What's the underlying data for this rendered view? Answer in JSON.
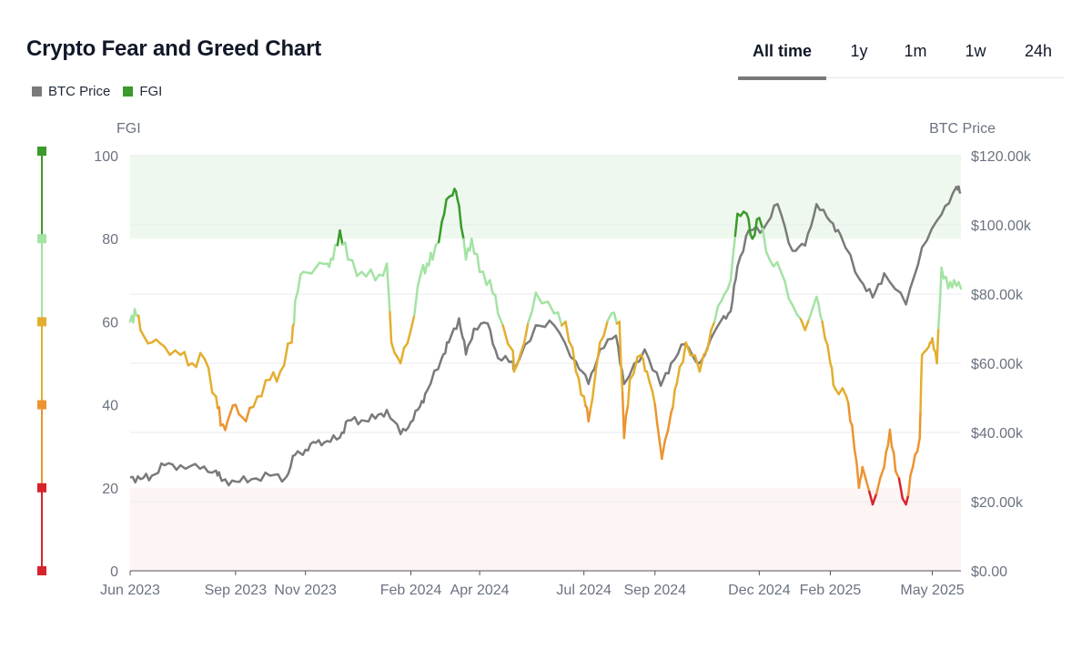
{
  "header": {
    "title": "Crypto Fear and Greed Chart"
  },
  "tabs": [
    {
      "label": "All time",
      "active": true
    },
    {
      "label": "1y",
      "active": false
    },
    {
      "label": "1m",
      "active": false
    },
    {
      "label": "1w",
      "active": false
    },
    {
      "label": "24h",
      "active": false
    }
  ],
  "legend": [
    {
      "label": "BTC Price",
      "color": "#7a7a7a"
    },
    {
      "label": "FGI",
      "color": "#3a9a2a"
    }
  ],
  "colors": {
    "extreme_greed": "#3a9a2a",
    "greed": "#a3e3a3",
    "neutral": "#e3ae2e",
    "fear": "#ec9430",
    "extreme_fear": "#d6242b",
    "btc": "#7a7a7a",
    "greed_zone": "#eef8ee",
    "fear_zone": "#fdf4f4"
  },
  "chart_data": {
    "type": "line",
    "y_left_label": "FGI",
    "y_right_label": "BTC Price",
    "y_left_range": [
      0,
      100
    ],
    "y_left_ticks": [
      "0",
      "20",
      "40",
      "60",
      "80",
      "100"
    ],
    "y_right_range": [
      0,
      120000
    ],
    "y_right_ticks": [
      "$0.00",
      "$20.00k",
      "$40.00k",
      "$60.00k",
      "$80.00k",
      "$100.00k",
      "$120.00k"
    ],
    "x_range": [
      "2023-06-01",
      "2025-05-26"
    ],
    "x_ticks": [
      {
        "label": "Jun 2023",
        "date": "2023-06-01"
      },
      {
        "label": "Sep 2023",
        "date": "2023-09-01"
      },
      {
        "label": "Nov 2023",
        "date": "2023-11-01"
      },
      {
        "label": "Feb 2024",
        "date": "2024-02-01"
      },
      {
        "label": "Apr 2024",
        "date": "2024-04-01"
      },
      {
        "label": "Jul 2024",
        "date": "2024-07-01"
      },
      {
        "label": "Sep 2024",
        "date": "2024-09-01"
      },
      {
        "label": "Dec 2024",
        "date": "2024-12-01"
      },
      {
        "label": "Feb 2025",
        "date": "2025-02-01"
      },
      {
        "label": "May 2025",
        "date": "2025-05-01"
      }
    ],
    "bands": [
      {
        "name": "Extreme Greed",
        "from": 80,
        "to": 100
      },
      {
        "name": "Extreme Fear",
        "from": 0,
        "to": 20
      }
    ],
    "scale_markers": [
      100,
      80,
      60,
      40,
      20,
      0
    ],
    "grid": true,
    "legend_position": "top-left",
    "series": [
      {
        "name": "BTC Price",
        "axis": "right",
        "points": [
          [
            "2023-06-01",
            27000
          ],
          [
            "2023-06-10",
            26500
          ],
          [
            "2023-06-20",
            27500
          ],
          [
            "2023-07-01",
            30500
          ],
          [
            "2023-07-15",
            30500
          ],
          [
            "2023-08-01",
            29500
          ],
          [
            "2023-08-15",
            29000
          ],
          [
            "2023-08-20",
            26000
          ],
          [
            "2023-09-01",
            25800
          ],
          [
            "2023-09-15",
            26500
          ],
          [
            "2023-10-01",
            27500
          ],
          [
            "2023-10-15",
            27000
          ],
          [
            "2023-10-23",
            33500
          ],
          [
            "2023-11-01",
            35000
          ],
          [
            "2023-11-10",
            37000
          ],
          [
            "2023-11-20",
            37500
          ],
          [
            "2023-12-01",
            38500
          ],
          [
            "2023-12-08",
            43500
          ],
          [
            "2023-12-20",
            43500
          ],
          [
            "2024-01-01",
            44000
          ],
          [
            "2024-01-11",
            46500
          ],
          [
            "2024-01-23",
            39500
          ],
          [
            "2024-02-01",
            43000
          ],
          [
            "2024-02-09",
            47500
          ],
          [
            "2024-02-15",
            52000
          ],
          [
            "2024-02-28",
            61500
          ],
          [
            "2024-03-05",
            66000
          ],
          [
            "2024-03-14",
            73000
          ],
          [
            "2024-03-20",
            62500
          ],
          [
            "2024-03-27",
            70000
          ],
          [
            "2024-04-08",
            71500
          ],
          [
            "2024-04-17",
            61500
          ],
          [
            "2024-04-30",
            60500
          ],
          [
            "2024-05-01",
            58000
          ],
          [
            "2024-05-20",
            71000
          ],
          [
            "2024-06-05",
            71000
          ],
          [
            "2024-06-24",
            60500
          ],
          [
            "2024-07-05",
            54000
          ],
          [
            "2024-07-15",
            64000
          ],
          [
            "2024-07-29",
            68000
          ],
          [
            "2024-08-05",
            54000
          ],
          [
            "2024-08-23",
            64000
          ],
          [
            "2024-09-06",
            53500
          ],
          [
            "2024-09-15",
            60000
          ],
          [
            "2024-09-27",
            65500
          ],
          [
            "2024-10-10",
            60000
          ],
          [
            "2024-10-29",
            72500
          ],
          [
            "2024-11-06",
            75000
          ],
          [
            "2024-11-12",
            88000
          ],
          [
            "2024-11-22",
            98500
          ],
          [
            "2024-12-05",
            99000
          ],
          [
            "2024-12-17",
            106000
          ],
          [
            "2024-12-30",
            92500
          ],
          [
            "2025-01-10",
            94000
          ],
          [
            "2025-01-20",
            106000
          ],
          [
            "2025-02-01",
            101000
          ],
          [
            "2025-02-10",
            97000
          ],
          [
            "2025-02-27",
            84000
          ],
          [
            "2025-03-10",
            79000
          ],
          [
            "2025-03-20",
            86000
          ],
          [
            "2025-04-08",
            77000
          ],
          [
            "2025-04-22",
            93500
          ],
          [
            "2025-05-09",
            103000
          ],
          [
            "2025-05-22",
            111000
          ],
          [
            "2025-05-26",
            109500
          ]
        ]
      },
      {
        "name": "FGI",
        "axis": "left",
        "points": [
          [
            "2023-06-01",
            60
          ],
          [
            "2023-06-05",
            63
          ],
          [
            "2023-06-10",
            58
          ],
          [
            "2023-06-20",
            55
          ],
          [
            "2023-07-01",
            54
          ],
          [
            "2023-07-15",
            52
          ],
          [
            "2023-07-25",
            50
          ],
          [
            "2023-08-05",
            51
          ],
          [
            "2023-08-15",
            42
          ],
          [
            "2023-08-19",
            35
          ],
          [
            "2023-08-25",
            36
          ],
          [
            "2023-09-01",
            40
          ],
          [
            "2023-09-10",
            36
          ],
          [
            "2023-09-20",
            42
          ],
          [
            "2023-10-01",
            46
          ],
          [
            "2023-10-10",
            48
          ],
          [
            "2023-10-20",
            55
          ],
          [
            "2023-10-23",
            65
          ],
          [
            "2023-10-30",
            72
          ],
          [
            "2023-11-10",
            73
          ],
          [
            "2023-11-20",
            74
          ],
          [
            "2023-11-25",
            75
          ],
          [
            "2023-12-01",
            82
          ],
          [
            "2023-12-08",
            75
          ],
          [
            "2023-12-20",
            72
          ],
          [
            "2024-01-01",
            70
          ],
          [
            "2024-01-11",
            74
          ],
          [
            "2024-01-15",
            55
          ],
          [
            "2024-01-23",
            50
          ],
          [
            "2024-02-01",
            58
          ],
          [
            "2024-02-10",
            72
          ],
          [
            "2024-02-15",
            74
          ],
          [
            "2024-02-20",
            75
          ],
          [
            "2024-02-28",
            84
          ],
          [
            "2024-03-05",
            90
          ],
          [
            "2024-03-10",
            92
          ],
          [
            "2024-03-14",
            88
          ],
          [
            "2024-03-20",
            75
          ],
          [
            "2024-03-25",
            80
          ],
          [
            "2024-04-01",
            72
          ],
          [
            "2024-04-10",
            70
          ],
          [
            "2024-04-17",
            62
          ],
          [
            "2024-04-30",
            53
          ],
          [
            "2024-05-01",
            48
          ],
          [
            "2024-05-10",
            55
          ],
          [
            "2024-05-20",
            67
          ],
          [
            "2024-06-05",
            62
          ],
          [
            "2024-06-15",
            60
          ],
          [
            "2024-06-24",
            48
          ],
          [
            "2024-07-01",
            42
          ],
          [
            "2024-07-05",
            36
          ],
          [
            "2024-07-10",
            45
          ],
          [
            "2024-07-15",
            55
          ],
          [
            "2024-07-25",
            62
          ],
          [
            "2024-08-01",
            60
          ],
          [
            "2024-08-05",
            32
          ],
          [
            "2024-08-10",
            46
          ],
          [
            "2024-08-20",
            52
          ],
          [
            "2024-08-25",
            48
          ],
          [
            "2024-09-01",
            40
          ],
          [
            "2024-09-07",
            27
          ],
          [
            "2024-09-15",
            38
          ],
          [
            "2024-09-20",
            45
          ],
          [
            "2024-09-28",
            55
          ],
          [
            "2024-10-10",
            48
          ],
          [
            "2024-10-20",
            58
          ],
          [
            "2024-10-29",
            65
          ],
          [
            "2024-11-06",
            70
          ],
          [
            "2024-11-12",
            86
          ],
          [
            "2024-11-20",
            86
          ],
          [
            "2024-11-25",
            80
          ],
          [
            "2024-12-01",
            85
          ],
          [
            "2024-12-10",
            75
          ],
          [
            "2024-12-20",
            72
          ],
          [
            "2024-12-30",
            64
          ],
          [
            "2025-01-10",
            58
          ],
          [
            "2025-01-20",
            66
          ],
          [
            "2025-01-25",
            60
          ],
          [
            "2025-02-01",
            50
          ],
          [
            "2025-02-05",
            44
          ],
          [
            "2025-02-15",
            42
          ],
          [
            "2025-02-20",
            35
          ],
          [
            "2025-02-26",
            20
          ],
          [
            "2025-03-01",
            25
          ],
          [
            "2025-03-10",
            16
          ],
          [
            "2025-03-20",
            25
          ],
          [
            "2025-03-25",
            34
          ],
          [
            "2025-03-30",
            24
          ],
          [
            "2025-04-08",
            16
          ],
          [
            "2025-04-14",
            25
          ],
          [
            "2025-04-20",
            32
          ],
          [
            "2025-04-22",
            52
          ],
          [
            "2025-04-28",
            54
          ],
          [
            "2025-05-01",
            56
          ],
          [
            "2025-05-05",
            50
          ],
          [
            "2025-05-09",
            73
          ],
          [
            "2025-05-15",
            68
          ],
          [
            "2025-05-20",
            70
          ],
          [
            "2025-05-26",
            68
          ]
        ]
      }
    ]
  }
}
